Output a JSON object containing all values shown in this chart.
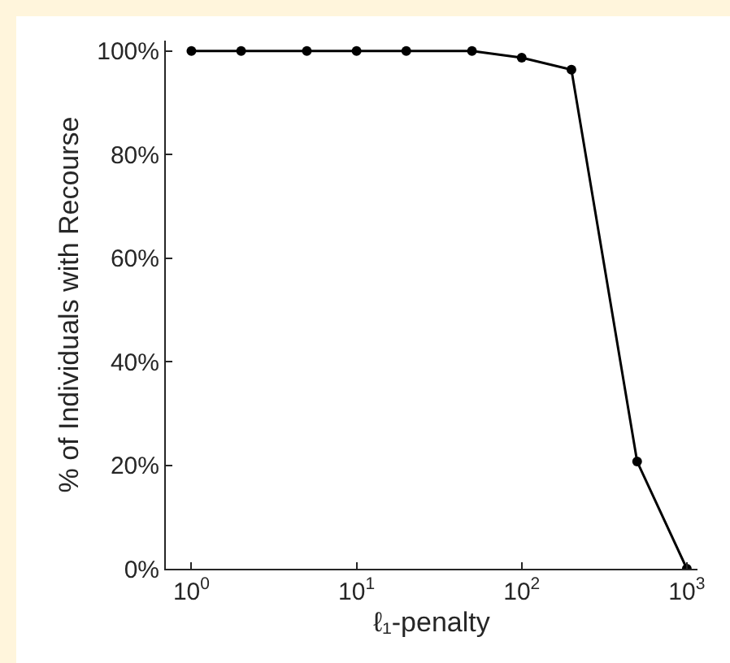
{
  "chart_data": {
    "type": "line",
    "xlabel": "ℓ₁-penalty",
    "ylabel": "% of Individuals with Recourse",
    "log": "x",
    "x": [
      1,
      2,
      5,
      10,
      20,
      50,
      100,
      200,
      500,
      1000
    ],
    "series": [
      {
        "color": "#000000",
        "values": [
          100,
          100,
          100,
          100,
          100,
          100,
          98.7,
          96.4,
          20.7,
          0
        ]
      }
    ],
    "xlim": [
      0.7,
      1160
    ],
    "xticks": [
      {
        "value": 1,
        "label": "10$^{0}$"
      },
      {
        "value": 10,
        "label": "10$^{1}$"
      },
      {
        "value": 100,
        "label": "10$^{2}$"
      },
      {
        "value": 1000,
        "label": "10$^{3}$"
      }
    ],
    "ylim": [
      0,
      102
    ],
    "yticks": [
      {
        "value": 0,
        "label": "0%"
      },
      {
        "value": 20,
        "label": "20%"
      },
      {
        "value": 40,
        "label": "40%"
      },
      {
        "value": 60,
        "label": "60%"
      },
      {
        "value": 80,
        "label": "80%"
      },
      {
        "value": 100,
        "label": "100%"
      }
    ],
    "grid": false,
    "marker": "circle",
    "line_style": "solid"
  }
}
